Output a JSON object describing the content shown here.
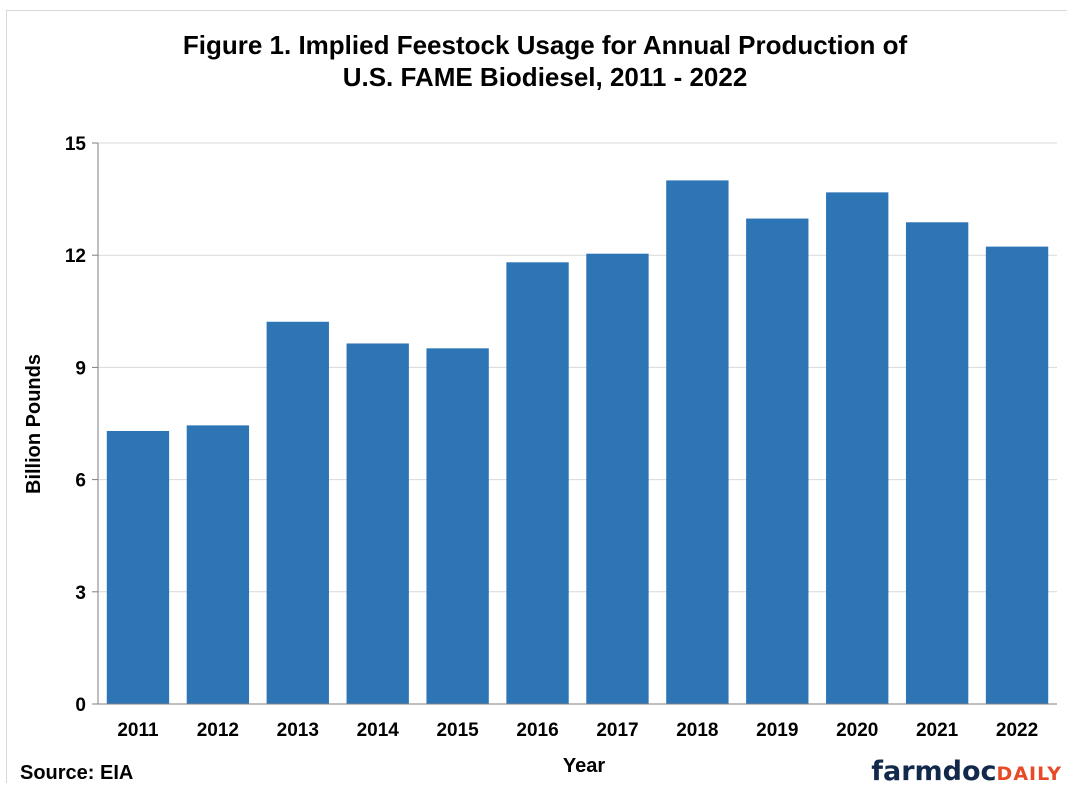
{
  "chart_data": {
    "type": "bar",
    "title_lines": [
      "Figure 1. Implied Feestock Usage for Annual Production of",
      "U.S. FAME Biodiesel, 2011 - 2022"
    ],
    "categories": [
      "2011",
      "2012",
      "2013",
      "2014",
      "2015",
      "2016",
      "2017",
      "2018",
      "2019",
      "2020",
      "2021",
      "2022"
    ],
    "values": [
      7.3,
      7.45,
      10.22,
      9.64,
      9.51,
      11.81,
      12.04,
      14.0,
      12.98,
      13.68,
      12.88,
      12.23
    ],
    "xlabel": "Year",
    "ylabel": "Billion Pounds",
    "ylim": [
      0,
      15
    ],
    "yticks": [
      "0",
      "3",
      "6",
      "9",
      "12",
      "15"
    ],
    "grid": true,
    "legend": "none",
    "bar_color": "#2e75b6",
    "grid_color": "#d9d9d9"
  },
  "source_note": "Source: EIA",
  "logo": {
    "main": "farmdoc",
    "sub": "DAILY",
    "main_color": "#13294b",
    "sub_color": "#e84a27"
  }
}
